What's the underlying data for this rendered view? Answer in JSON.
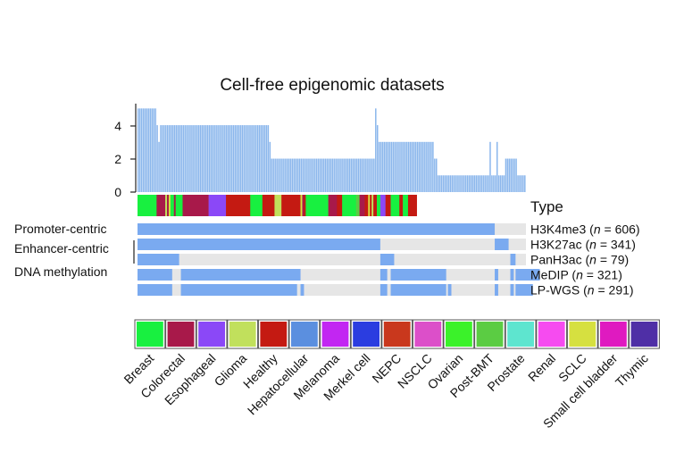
{
  "chart_data": {
    "type": "bar",
    "title": "Cell-free epigenomic datasets",
    "y_ticks": [
      "0",
      "2",
      "4"
    ],
    "ylim": [
      0,
      5.5
    ],
    "bar_color": "#8ab6ec",
    "values": [
      5,
      5,
      5,
      5,
      5,
      5,
      5,
      5,
      5,
      5,
      5,
      4,
      3,
      4,
      4,
      4,
      4,
      4,
      4,
      4,
      4,
      4,
      4,
      4,
      4,
      4,
      4,
      4,
      4,
      4,
      4,
      4,
      4,
      4,
      4,
      4,
      4,
      4,
      4,
      4,
      4,
      4,
      4,
      4,
      4,
      4,
      4,
      4,
      4,
      4,
      4,
      4,
      4,
      4,
      4,
      4,
      4,
      4,
      4,
      4,
      4,
      4,
      4,
      4,
      4,
      4,
      4,
      4,
      4,
      4,
      4,
      4,
      4,
      4,
      4,
      4,
      3,
      2,
      2,
      2,
      2,
      2,
      2,
      2,
      2,
      2,
      2,
      2,
      2,
      2,
      2,
      2,
      2,
      2,
      2,
      2,
      2,
      2,
      2,
      2,
      2,
      2,
      2,
      2,
      2,
      2,
      2,
      2,
      2,
      2,
      2,
      2,
      2,
      2,
      2,
      2,
      2,
      2,
      2,
      2,
      2,
      2,
      2,
      2,
      2,
      2,
      2,
      2,
      2,
      2,
      2,
      2,
      2,
      2,
      2,
      2,
      2,
      5,
      4,
      3,
      3,
      3,
      3,
      3,
      3,
      3,
      3,
      3,
      3,
      3,
      3,
      3,
      3,
      3,
      3,
      3,
      3,
      3,
      3,
      3,
      3,
      3,
      3,
      3,
      3,
      3,
      3,
      3,
      3,
      3,
      3,
      2,
      2,
      1,
      1,
      1,
      1,
      1,
      1,
      1,
      1,
      1,
      1,
      1,
      1,
      1,
      1,
      1,
      1,
      1,
      1,
      1,
      1,
      1,
      1,
      1,
      1,
      1,
      1,
      1,
      1,
      1,
      1,
      3,
      1,
      1,
      1,
      3,
      1,
      1,
      1,
      1,
      2,
      2,
      2,
      2,
      2,
      2,
      2,
      1,
      1,
      1,
      1,
      1
    ],
    "type_label": "Type",
    "type_strip": [
      {
        "cat": "Breast",
        "n": 11
      },
      {
        "cat": "Colorectal",
        "n": 5
      },
      {
        "cat": "Glioma",
        "n": 1
      },
      {
        "cat": "Colorectal",
        "n": 1
      },
      {
        "cat": "SCLC",
        "n": 1
      },
      {
        "cat": "Breast",
        "n": 2
      },
      {
        "cat": "Colorectal",
        "n": 1
      },
      {
        "cat": "Breast",
        "n": 4
      },
      {
        "cat": "Colorectal",
        "n": 15
      },
      {
        "cat": "Esophageal",
        "n": 10
      },
      {
        "cat": "Healthy",
        "n": 14
      },
      {
        "cat": "Breast",
        "n": 7
      },
      {
        "cat": "Healthy",
        "n": 7
      },
      {
        "cat": "Glioma",
        "n": 4
      },
      {
        "cat": "Healthy",
        "n": 11
      },
      {
        "cat": "SCLC",
        "n": 1
      },
      {
        "cat": "Colorectal",
        "n": 1
      },
      {
        "cat": "Healthy",
        "n": 1
      },
      {
        "cat": "Breast",
        "n": 13
      },
      {
        "cat": "Colorectal",
        "n": 5
      },
      {
        "cat": "Healthy",
        "n": 3
      },
      {
        "cat": "Breast",
        "n": 8
      },
      {
        "cat": "Post-BMT",
        "n": 2
      },
      {
        "cat": "Colorectal",
        "n": 3
      },
      {
        "cat": "Healthy",
        "n": 2
      },
      {
        "cat": "SCLC",
        "n": 1
      },
      {
        "cat": "Healthy",
        "n": 1
      },
      {
        "cat": "Glioma",
        "n": 1
      },
      {
        "cat": "Healthy",
        "n": 2
      },
      {
        "cat": "Breast",
        "n": 2
      },
      {
        "cat": "Esophageal",
        "n": 3
      },
      {
        "cat": "Healthy",
        "n": 3
      },
      {
        "cat": "Breast",
        "n": 5
      },
      {
        "cat": "Healthy",
        "n": 2
      },
      {
        "cat": "Breast",
        "n": 3
      },
      {
        "cat": "Healthy",
        "n": 5
      }
    ],
    "tracks": [
      {
        "label": "H3K4me3",
        "n": "606",
        "group": "Promoter-centric",
        "segments": [
          {
            "from": 0,
            "to": 206
          }
        ]
      },
      {
        "label": "H3K27ac",
        "n": "341",
        "group": "Enhancer-centric",
        "segments": [
          {
            "from": 0,
            "to": 140
          },
          {
            "from": 206,
            "to": 214
          }
        ]
      },
      {
        "label": "PanH3ac",
        "n": "79",
        "group": "",
        "segments": [
          {
            "from": 0,
            "to": 24
          },
          {
            "from": 140,
            "to": 148
          },
          {
            "from": 215,
            "to": 218
          }
        ]
      },
      {
        "label": "MeDIP",
        "n": "321",
        "group": "DNA methylation",
        "segments": [
          {
            "from": 0,
            "to": 20
          },
          {
            "from": 25,
            "to": 94
          },
          {
            "from": 140,
            "to": 144
          },
          {
            "from": 146,
            "to": 178
          },
          {
            "from": 206,
            "to": 208
          },
          {
            "from": 215,
            "to": 217
          },
          {
            "from": 218,
            "to": 232
          }
        ]
      },
      {
        "label": "LP-WGS",
        "n": "291",
        "group": "",
        "segments": [
          {
            "from": 0,
            "to": 20
          },
          {
            "from": 25,
            "to": 92
          },
          {
            "from": 94,
            "to": 96
          },
          {
            "from": 140,
            "to": 144
          },
          {
            "from": 146,
            "to": 178
          },
          {
            "from": 179,
            "to": 181
          },
          {
            "from": 206,
            "to": 208
          },
          {
            "from": 215,
            "to": 217
          },
          {
            "from": 218,
            "to": 228
          }
        ]
      }
    ],
    "track_filled_color": "#7aaaf0",
    "track_empty_color": "#e6e6e6",
    "groups": [
      "Promoter-centric",
      "Enhancer-centric",
      "DNA methylation"
    ],
    "legend": [
      {
        "label": "Breast",
        "color": "#18f040"
      },
      {
        "label": "Colorectal",
        "color": "#a8194a"
      },
      {
        "label": "Esophageal",
        "color": "#8b48f7"
      },
      {
        "label": "Glioma",
        "color": "#c1e05c"
      },
      {
        "label": "Healthy",
        "color": "#c41a12"
      },
      {
        "label": "Hepatocellular",
        "color": "#5b8fdf"
      },
      {
        "label": "Melanoma",
        "color": "#c226f2"
      },
      {
        "label": "Merkel cell",
        "color": "#2b3de0"
      },
      {
        "label": "NEPC",
        "color": "#c9381d"
      },
      {
        "label": "NSCLC",
        "color": "#dc4fc9"
      },
      {
        "label": "Ovarian",
        "color": "#3bf22a"
      },
      {
        "label": "Post-BMT",
        "color": "#5bcc43"
      },
      {
        "label": "Prostate",
        "color": "#5ee5cf"
      },
      {
        "label": "Renal",
        "color": "#f64bf0"
      },
      {
        "label": "SCLC",
        "color": "#d6e040"
      },
      {
        "label": "Small cell bladder",
        "color": "#df1ac0"
      },
      {
        "label": "Thymic",
        "color": "#4f2fa6"
      }
    ]
  }
}
